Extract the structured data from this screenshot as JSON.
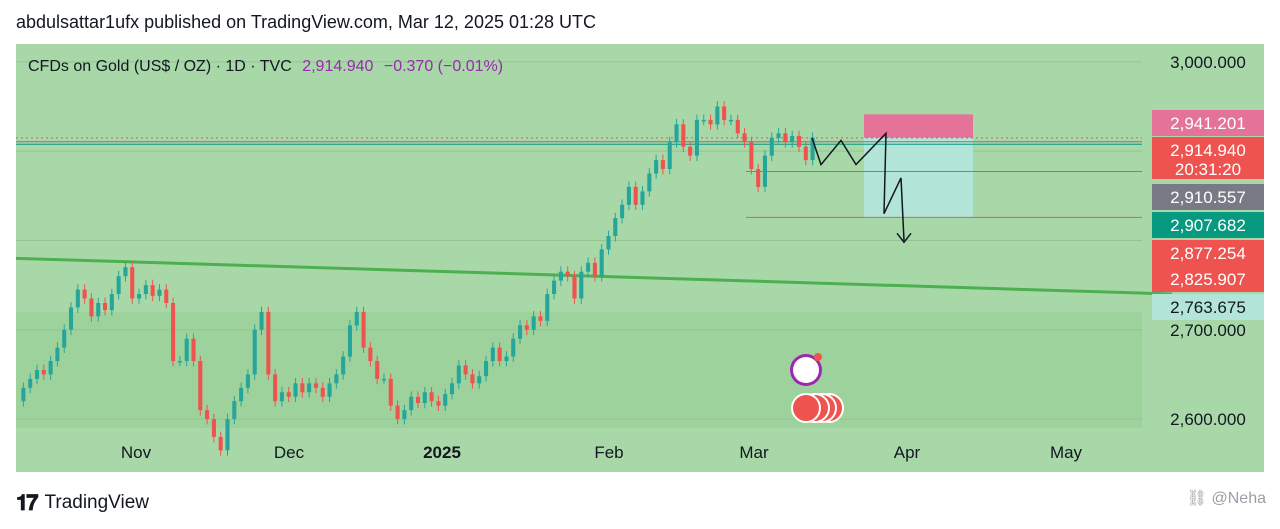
{
  "header": {
    "published_line": "abdulsattar1ufx published on TradingView.com, Mar 12, 2025 01:28 UTC"
  },
  "legend": {
    "symbol": "CFDs on Gold (US$ / OZ) · 1D · TVC",
    "price": "2,914.940",
    "change": "−0.370 (−0.01%)"
  },
  "footer": {
    "logo_text": "TradingView",
    "watermark": "@Neha"
  },
  "colors": {
    "background": "#a8d8a8",
    "lower_band": "#9dd29d",
    "up_candle": "#26a69a",
    "down_candle": "#ef5350",
    "trendline": "#4caf50",
    "sell_zone": "#e57399",
    "target_zone": "#b2e4d8"
  },
  "chart_data": {
    "type": "candlestick",
    "title": "CFDs on Gold (US$ / OZ) · 1D · TVC",
    "x_ticks": [
      "Nov",
      "Dec",
      "2025",
      "Feb",
      "Mar",
      "Apr",
      "May"
    ],
    "y_ticks": [
      "3,000.000",
      "2,700.000",
      "2,600.000"
    ],
    "ylim": [
      2590,
      3020
    ],
    "price_labels": [
      {
        "text": "2,941.201",
        "color": "#e57399"
      },
      {
        "text": "2,914.940",
        "color": "#ef5350"
      },
      {
        "text": "20:31:20",
        "color": "#ef5350"
      },
      {
        "text": "2,910.557",
        "color": "#787b86"
      },
      {
        "text": "2,907.682",
        "color": "#089981"
      },
      {
        "text": "2,877.254",
        "color": "#ef5350"
      },
      {
        "text": "2,825.907",
        "color": "#ef5350"
      },
      {
        "text": "2,763.675",
        "color": "#b2e4d8"
      }
    ],
    "candles": [
      {
        "o": 2620,
        "c": 2635
      },
      {
        "o": 2635,
        "c": 2645
      },
      {
        "o": 2645,
        "c": 2655
      },
      {
        "o": 2655,
        "c": 2650
      },
      {
        "o": 2650,
        "c": 2665
      },
      {
        "o": 2665,
        "c": 2680
      },
      {
        "o": 2680,
        "c": 2700
      },
      {
        "o": 2700,
        "c": 2725
      },
      {
        "o": 2725,
        "c": 2745
      },
      {
        "o": 2745,
        "c": 2735
      },
      {
        "o": 2735,
        "c": 2715
      },
      {
        "o": 2715,
        "c": 2730
      },
      {
        "o": 2730,
        "c": 2722
      },
      {
        "o": 2722,
        "c": 2740
      },
      {
        "o": 2740,
        "c": 2760
      },
      {
        "o": 2760,
        "c": 2770
      },
      {
        "o": 2770,
        "c": 2735
      },
      {
        "o": 2735,
        "c": 2740
      },
      {
        "o": 2740,
        "c": 2750
      },
      {
        "o": 2750,
        "c": 2738
      },
      {
        "o": 2738,
        "c": 2745
      },
      {
        "o": 2745,
        "c": 2730
      },
      {
        "o": 2730,
        "c": 2665
      },
      {
        "o": 2665,
        "c": 2665
      },
      {
        "o": 2665,
        "c": 2690
      },
      {
        "o": 2690,
        "c": 2665
      },
      {
        "o": 2665,
        "c": 2610
      },
      {
        "o": 2610,
        "c": 2600
      },
      {
        "o": 2600,
        "c": 2580
      },
      {
        "o": 2580,
        "c": 2565
      },
      {
        "o": 2565,
        "c": 2600
      },
      {
        "o": 2600,
        "c": 2620
      },
      {
        "o": 2620,
        "c": 2635
      },
      {
        "o": 2635,
        "c": 2650
      },
      {
        "o": 2650,
        "c": 2700
      },
      {
        "o": 2700,
        "c": 2720
      },
      {
        "o": 2720,
        "c": 2650
      },
      {
        "o": 2650,
        "c": 2620
      },
      {
        "o": 2620,
        "c": 2630
      },
      {
        "o": 2630,
        "c": 2625
      },
      {
        "o": 2625,
        "c": 2640
      },
      {
        "o": 2640,
        "c": 2630
      },
      {
        "o": 2630,
        "c": 2640
      },
      {
        "o": 2640,
        "c": 2635
      },
      {
        "o": 2635,
        "c": 2625
      },
      {
        "o": 2625,
        "c": 2640
      },
      {
        "o": 2640,
        "c": 2650
      },
      {
        "o": 2650,
        "c": 2670
      },
      {
        "o": 2670,
        "c": 2705
      },
      {
        "o": 2705,
        "c": 2720
      },
      {
        "o": 2720,
        "c": 2680
      },
      {
        "o": 2680,
        "c": 2665
      },
      {
        "o": 2665,
        "c": 2645
      },
      {
        "o": 2645,
        "c": 2645
      },
      {
        "o": 2645,
        "c": 2615
      },
      {
        "o": 2615,
        "c": 2600
      },
      {
        "o": 2600,
        "c": 2610
      },
      {
        "o": 2610,
        "c": 2625
      },
      {
        "o": 2625,
        "c": 2618
      },
      {
        "o": 2618,
        "c": 2630
      },
      {
        "o": 2630,
        "c": 2620
      },
      {
        "o": 2620,
        "c": 2615
      },
      {
        "o": 2615,
        "c": 2628
      },
      {
        "o": 2628,
        "c": 2640
      },
      {
        "o": 2640,
        "c": 2660
      },
      {
        "o": 2660,
        "c": 2650
      },
      {
        "o": 2650,
        "c": 2640
      },
      {
        "o": 2640,
        "c": 2648
      },
      {
        "o": 2648,
        "c": 2665
      },
      {
        "o": 2665,
        "c": 2680
      },
      {
        "o": 2680,
        "c": 2665
      },
      {
        "o": 2665,
        "c": 2670
      },
      {
        "o": 2670,
        "c": 2690
      },
      {
        "o": 2690,
        "c": 2705
      },
      {
        "o": 2705,
        "c": 2700
      },
      {
        "o": 2700,
        "c": 2715
      },
      {
        "o": 2715,
        "c": 2710
      },
      {
        "o": 2710,
        "c": 2740
      },
      {
        "o": 2740,
        "c": 2755
      },
      {
        "o": 2755,
        "c": 2765
      },
      {
        "o": 2765,
        "c": 2760
      },
      {
        "o": 2760,
        "c": 2735
      },
      {
        "o": 2735,
        "c": 2765
      },
      {
        "o": 2765,
        "c": 2775
      },
      {
        "o": 2775,
        "c": 2760
      },
      {
        "o": 2760,
        "c": 2790
      },
      {
        "o": 2790,
        "c": 2805
      },
      {
        "o": 2805,
        "c": 2825
      },
      {
        "o": 2825,
        "c": 2840
      },
      {
        "o": 2840,
        "c": 2860
      },
      {
        "o": 2860,
        "c": 2840
      },
      {
        "o": 2840,
        "c": 2855
      },
      {
        "o": 2855,
        "c": 2875
      },
      {
        "o": 2875,
        "c": 2890
      },
      {
        "o": 2890,
        "c": 2880
      },
      {
        "o": 2880,
        "c": 2910
      },
      {
        "o": 2910,
        "c": 2930
      },
      {
        "o": 2930,
        "c": 2905
      },
      {
        "o": 2905,
        "c": 2895
      },
      {
        "o": 2895,
        "c": 2935
      },
      {
        "o": 2935,
        "c": 2935
      },
      {
        "o": 2935,
        "c": 2930
      },
      {
        "o": 2930,
        "c": 2950
      },
      {
        "o": 2950,
        "c": 2935
      },
      {
        "o": 2935,
        "c": 2935
      },
      {
        "o": 2935,
        "c": 2920
      },
      {
        "o": 2920,
        "c": 2910
      },
      {
        "o": 2910,
        "c": 2880
      },
      {
        "o": 2880,
        "c": 2860
      },
      {
        "o": 2860,
        "c": 2895
      },
      {
        "o": 2895,
        "c": 2915
      },
      {
        "o": 2915,
        "c": 2920
      },
      {
        "o": 2920,
        "c": 2910
      },
      {
        "o": 2910,
        "c": 2917
      },
      {
        "o": 2917,
        "c": 2905
      },
      {
        "o": 2905,
        "c": 2890
      },
      {
        "o": 2890,
        "c": 2915
      }
    ],
    "trendline": [
      {
        "x": 0,
        "y": 2780
      },
      {
        "x": 1,
        "y": 2740
      }
    ],
    "sell_zone": [
      2915,
      2941.201
    ],
    "target_zone": [
      2825.907,
      2915
    ],
    "horizontal_lines": [
      {
        "y": 2914.94,
        "style": "dotted",
        "color": "#ef5350"
      },
      {
        "y": 2910.557,
        "style": "solid",
        "color": "#787b86"
      },
      {
        "y": 2907.682,
        "style": "solid",
        "color": "#089981"
      },
      {
        "y": 2877.254,
        "style": "solid",
        "color": "#ef5350"
      },
      {
        "y": 2825.907,
        "style": "solid",
        "color": "#ef5350"
      }
    ]
  }
}
